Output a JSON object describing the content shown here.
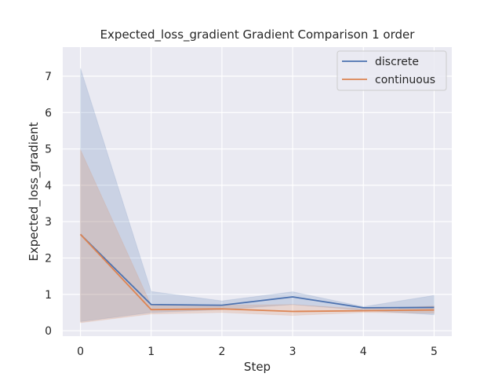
{
  "chart_data": {
    "type": "line",
    "title": "Expected_loss_gradient Gradient Comparison 1 order",
    "xlabel": "Step",
    "ylabel": "Expected_loss_gradient",
    "x": [
      0,
      1,
      2,
      3,
      4,
      5
    ],
    "x_ticks": [
      "0",
      "1",
      "2",
      "3",
      "4",
      "5"
    ],
    "y_ticks": [
      "0",
      "1",
      "2",
      "3",
      "4",
      "5",
      "6",
      "7"
    ],
    "xlim": [
      -0.25,
      5.25
    ],
    "ylim": [
      -0.15,
      7.8
    ],
    "grid": true,
    "legend_position": "top-right",
    "series": [
      {
        "name": "discrete",
        "color": "#4c72b0",
        "values": [
          2.65,
          0.72,
          0.7,
          0.93,
          0.63,
          0.64
        ],
        "ci_upper": [
          7.22,
          1.08,
          0.82,
          1.07,
          0.66,
          0.97
        ],
        "ci_lower": [
          0.25,
          0.5,
          0.58,
          0.72,
          0.56,
          0.44
        ]
      },
      {
        "name": "continuous",
        "color": "#dd8452",
        "values": [
          2.65,
          0.58,
          0.6,
          0.53,
          0.55,
          0.57
        ],
        "ci_upper": [
          4.98,
          0.7,
          0.7,
          0.72,
          0.6,
          0.68
        ],
        "ci_lower": [
          0.22,
          0.46,
          0.5,
          0.42,
          0.5,
          0.48
        ]
      }
    ]
  }
}
